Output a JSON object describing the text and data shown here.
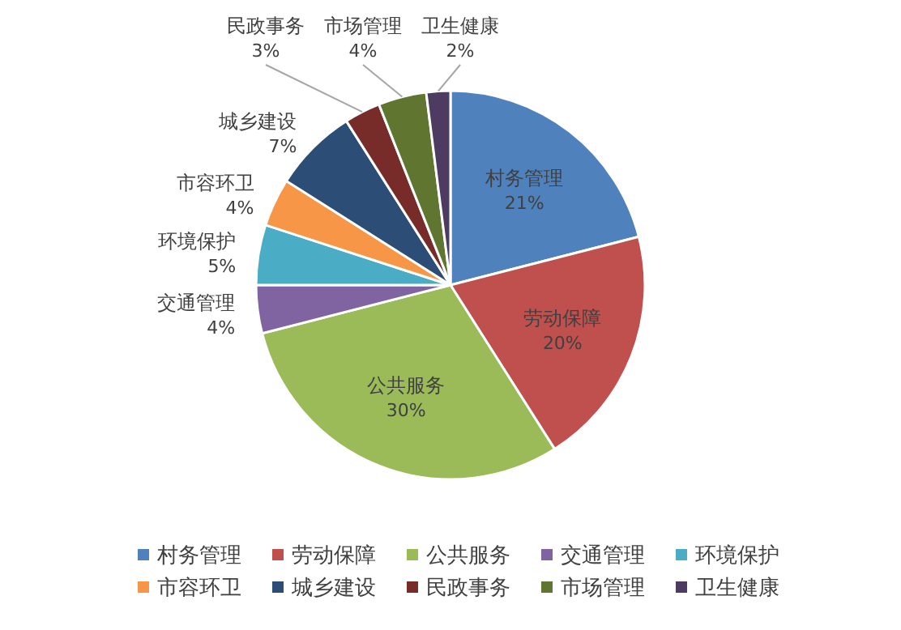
{
  "chart_data": {
    "type": "pie",
    "categories": [
      "村务管理",
      "劳动保障",
      "公共服务",
      "交通管理",
      "环境保护",
      "市容环卫",
      "城乡建设",
      "民政事务",
      "市场管理",
      "卫生健康"
    ],
    "values": [
      21,
      20,
      30,
      4,
      5,
      4,
      7,
      3,
      4,
      2
    ],
    "colors": [
      "#4f81bd",
      "#c0504d",
      "#9bbb59",
      "#8064a2",
      "#4bacc6",
      "#f79646",
      "#2c4d75",
      "#772c2a",
      "#5f7530",
      "#4d3b62"
    ],
    "value_labels": [
      "21%",
      "20%",
      "30%",
      "4%",
      "5%",
      "4%",
      "7%",
      "3%",
      "4%",
      "2%"
    ],
    "legend": "bottom"
  }
}
